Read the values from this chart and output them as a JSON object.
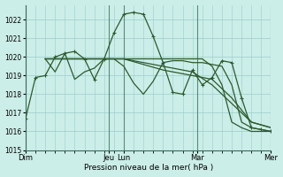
{
  "background_color": "#cceee8",
  "grid_color": "#99cccc",
  "line_color": "#2d5a2d",
  "xlabel": "Pression niveau de la mer( hPa )",
  "ylim": [
    1015,
    1022.8
  ],
  "yticks": [
    1015,
    1016,
    1017,
    1018,
    1019,
    1020,
    1021,
    1022
  ],
  "xlim": [
    0,
    25
  ],
  "day_positions": [
    0,
    8.5,
    10,
    17.5,
    25
  ],
  "day_labels": [
    "Dim",
    "Jeu",
    "Lun",
    "Mar",
    "Mer"
  ],
  "lines": [
    {
      "x": [
        0,
        1,
        2,
        3,
        4,
        5,
        6,
        7,
        8,
        9,
        10,
        11,
        12,
        13,
        14,
        15,
        16,
        17,
        18,
        19,
        20,
        21,
        22,
        23,
        24,
        25
      ],
      "y": [
        1016.7,
        1018.9,
        1019.0,
        1020.0,
        1020.2,
        1020.3,
        1019.9,
        1018.8,
        1019.9,
        1021.3,
        1022.3,
        1022.4,
        1022.3,
        1021.1,
        1019.7,
        1018.1,
        1018.0,
        1019.3,
        1018.5,
        1018.9,
        1019.8,
        1019.7,
        1017.8,
        1016.2,
        1016.1,
        1016.0
      ],
      "marker": true
    },
    {
      "x": [
        2,
        3,
        4,
        5,
        6,
        7,
        8,
        9,
        10,
        11,
        12,
        13,
        14,
        15,
        16,
        17,
        18,
        19,
        20,
        21,
        22,
        23,
        24,
        25
      ],
      "y": [
        1019.9,
        1019.9,
        1019.9,
        1019.9,
        1019.9,
        1019.9,
        1019.9,
        1019.9,
        1019.9,
        1019.9,
        1019.9,
        1019.9,
        1019.9,
        1019.9,
        1019.9,
        1019.9,
        1019.9,
        1019.5,
        1018.5,
        1016.5,
        1016.2,
        1016.0,
        1016.0,
        1016.0
      ],
      "marker": false
    },
    {
      "x": [
        2,
        5,
        8,
        10,
        14,
        17,
        19,
        21,
        23,
        25
      ],
      "y": [
        1019.9,
        1019.9,
        1019.9,
        1019.9,
        1019.5,
        1019.2,
        1018.5,
        1017.5,
        1016.5,
        1016.2
      ],
      "marker": false
    },
    {
      "x": [
        2,
        6,
        10,
        14,
        17,
        19,
        21,
        23,
        25
      ],
      "y": [
        1019.9,
        1019.9,
        1019.9,
        1019.3,
        1019.0,
        1018.8,
        1017.8,
        1016.5,
        1016.2
      ],
      "marker": false
    },
    {
      "x": [
        2,
        3,
        4,
        5,
        6,
        7,
        8,
        9,
        10,
        11,
        12,
        13,
        14,
        15,
        16,
        17,
        18,
        19,
        20,
        21,
        22,
        23,
        24,
        25
      ],
      "y": [
        1019.9,
        1019.2,
        1020.2,
        1018.8,
        1019.2,
        1019.4,
        1019.9,
        1019.9,
        1019.5,
        1018.6,
        1018.0,
        1018.7,
        1019.7,
        1019.8,
        1019.8,
        1019.7,
        1019.7,
        1019.6,
        1019.5,
        1018.5,
        1016.5,
        1016.2,
        1016.1,
        1016.0
      ],
      "marker": false
    }
  ]
}
